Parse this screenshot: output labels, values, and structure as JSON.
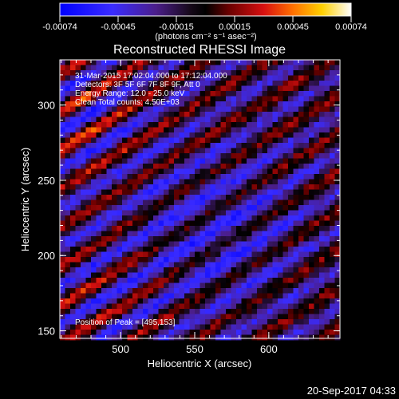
{
  "colorbar": {
    "tick_labels": [
      "-0.00074",
      "-0.00045",
      "-0.00015",
      "0.00015",
      "0.00045",
      "0.00074"
    ],
    "units": "(photons cm⁻² s⁻¹ asec⁻²)",
    "range": [
      -0.00074,
      0.00074
    ]
  },
  "plot": {
    "title": "Reconstructed RHESSI Image",
    "xlabel": "Heliocentric X (arcsec)",
    "ylabel": "Heliocentric Y (arcsec)",
    "x_ticks": [
      "500",
      "550",
      "600"
    ],
    "y_ticks": [
      "150",
      "200",
      "250",
      "300"
    ],
    "xlim": [
      459,
      648
    ],
    "ylim": [
      145,
      330
    ],
    "annotations": [
      "31-Mar-2015 17:02:04.000 to 17:12:04.000",
      "Detectors: 3F 5F 6F 7F 8F 9F, Att 0",
      "Energy Range: 12.0 - 25.0 keV",
      "Clean    Total counts: 4.50E+03"
    ],
    "peak_label": "Position of Peak = [495,153]"
  },
  "footer": {
    "timestamp": "20-Sep-2017 04:33"
  },
  "chart_data": {
    "type": "heatmap",
    "title": "Reconstructed RHESSI Image",
    "xlabel": "Heliocentric X (arcsec)",
    "ylabel": "Heliocentric Y (arcsec)",
    "x_range": [
      459,
      648
    ],
    "y_range": [
      145,
      330
    ],
    "color_range": [
      -0.00074,
      0.00074
    ],
    "peak": [
      495,
      153
    ],
    "colormap": [
      "#0000ff",
      "#3a2cff",
      "#5a2090",
      "#1a0820",
      "#000000",
      "#7a0000",
      "#e01010",
      "#ff7a00",
      "#ffd000",
      "#ffffff"
    ]
  }
}
